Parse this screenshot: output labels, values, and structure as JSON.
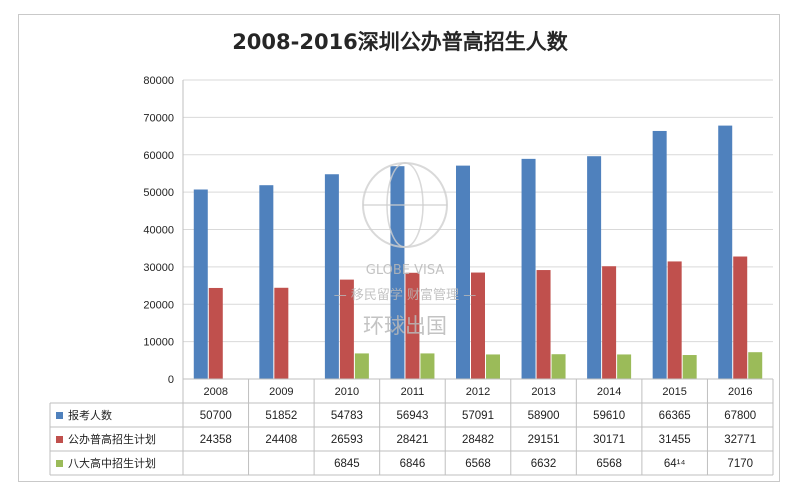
{
  "chart_data": {
    "type": "bar",
    "title": "2008-2016深圳公办普高招生人数",
    "categories": [
      "2008",
      "2009",
      "2010",
      "2011",
      "2012",
      "2013",
      "2014",
      "2015",
      "2016"
    ],
    "series": [
      {
        "name": "报考人数",
        "color": "#4f81bd",
        "values": [
          50700,
          51852,
          54783,
          56943,
          57091,
          58900,
          59610,
          66365,
          67800
        ]
      },
      {
        "name": "公办普高招生计划",
        "color": "#c0504d",
        "values": [
          24358,
          24408,
          26593,
          28421,
          28482,
          29151,
          30171,
          31455,
          32771
        ]
      },
      {
        "name": "八大高中招生计划",
        "color": "#9bbb59",
        "values": [
          null,
          null,
          6845,
          6846,
          6568,
          6632,
          6568,
          6414,
          7170
        ]
      }
    ],
    "table_cells": [
      [
        "50700",
        "51852",
        "54783",
        "56943",
        "57091",
        "58900",
        "59610",
        "66365",
        "67800"
      ],
      [
        "24358",
        "24408",
        "26593",
        "28421",
        "28482",
        "29151",
        "30171",
        "31455",
        "32771"
      ],
      [
        "",
        "",
        "6845",
        "6846",
        "6568",
        "6632",
        "6568",
        "64¹⁴",
        "7170"
      ]
    ],
    "ylim": [
      0,
      80000
    ],
    "yticks": [
      "0",
      "10000",
      "20000",
      "30000",
      "40000",
      "50000",
      "60000",
      "70000",
      "80000"
    ],
    "grid": true,
    "legend": "data-table"
  },
  "watermark": {
    "line1": "GLOBE VISA",
    "line2": "— 移民留学 财富管理 —",
    "line3": "环球出国"
  }
}
